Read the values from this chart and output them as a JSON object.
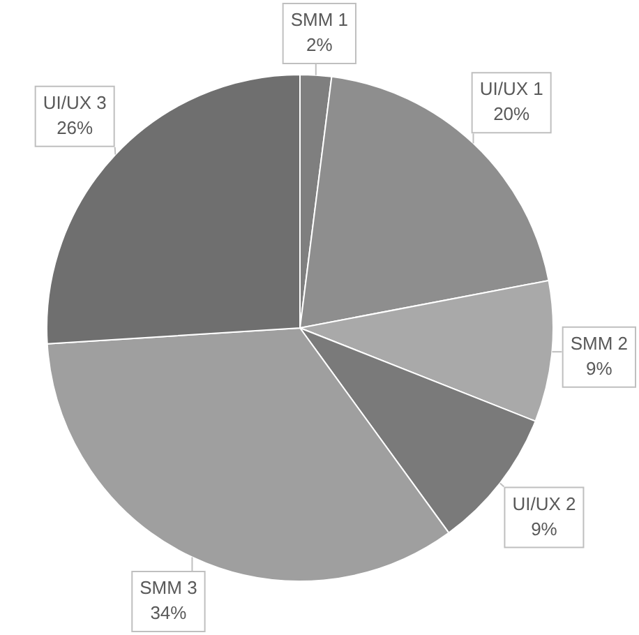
{
  "chart_data": {
    "type": "pie",
    "categories": [
      "SMM 1",
      "UI/UX 1",
      "SMM 2",
      "UI/UX 2",
      "SMM 3",
      "UI/UX 3"
    ],
    "values": [
      2,
      20,
      9,
      9,
      34,
      26
    ],
    "colors": [
      "#7f7f7f",
      "#8e8e8e",
      "#a9a9a9",
      "#7a7a7a",
      "#9f9f9f",
      "#6f6f6f"
    ],
    "value_labels": [
      "2%",
      "20%",
      "9%",
      "9%",
      "34%",
      "26%"
    ],
    "legend": false
  }
}
